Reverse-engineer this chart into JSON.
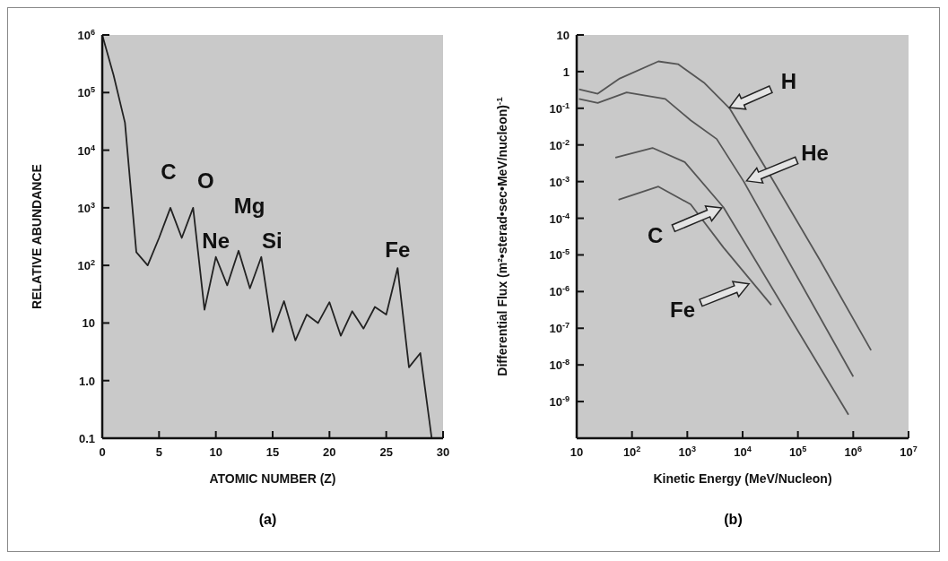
{
  "chart_data": [
    {
      "type": "line",
      "xlabel": "ATOMIC NUMBER (Z)",
      "ylabel": "RELATIVE ABUNDANCE",
      "log": "y",
      "grid": false,
      "marker": "none",
      "line_style": "solid",
      "xlim": [
        0,
        30
      ],
      "xticks": [
        0,
        5,
        10,
        15,
        20,
        25,
        30
      ],
      "ylim": [
        0.1,
        1000000
      ],
      "yticks": [
        {
          "value": 0.1,
          "label": "0.1"
        },
        {
          "value": 1,
          "label": "1.0"
        },
        {
          "value": 10,
          "label": "10"
        },
        {
          "value": 100,
          "label": "10$^{2}$"
        },
        {
          "value": 1000,
          "label": "10$^{3}$"
        },
        {
          "value": 10000,
          "label": "10$^{4}$"
        },
        {
          "value": 100000,
          "label": "10$^{5}$"
        },
        {
          "value": 1000000,
          "label": "10$^{6}$"
        }
      ],
      "x": [
        0,
        1,
        2,
        3,
        4,
        5,
        6,
        7,
        8,
        9,
        10,
        11,
        12,
        13,
        14,
        15,
        16,
        17,
        18,
        19,
        20,
        21,
        22,
        23,
        24,
        25,
        26,
        27,
        28,
        29
      ],
      "series": [
        {
          "color": "#222222",
          "values": [
            1000000,
            200000,
            30000,
            170,
            100,
            300,
            1000,
            300,
            1000,
            17,
            140,
            45,
            180,
            40,
            140,
            7,
            24,
            5,
            14,
            10,
            23,
            6,
            16,
            8,
            19,
            14,
            90,
            1.7,
            3,
            0.1
          ]
        }
      ],
      "annotations": [
        "(a)",
        {
          "text": "C",
          "x": 6,
          "y": 1000
        },
        {
          "text": "O",
          "x": 8,
          "y": 1000
        },
        {
          "text": "Ne",
          "x": 10,
          "y": 140
        },
        {
          "text": "Mg",
          "x": 12,
          "y": 180
        },
        {
          "text": "Si",
          "x": 14,
          "y": 140
        },
        {
          "text": "Fe",
          "x": 26,
          "y": 90
        }
      ]
    },
    {
      "type": "line",
      "xlabel": "Kinetic Energy (MeV/Nucleon)",
      "ylabel": "Differential Flux (m²•sterad•sec•MeV/nucleon)$^{-1}$",
      "log": "xy",
      "grid": false,
      "marker": "none",
      "line_style": "solid",
      "xlim": [
        10,
        10000000
      ],
      "xticks": [
        {
          "value": 10,
          "label": "10"
        },
        {
          "value": 100,
          "label": "10$^{2}$"
        },
        {
          "value": 1000,
          "label": "10$^{3}$"
        },
        {
          "value": 10000,
          "label": "10$^{4}$"
        },
        {
          "value": 100000,
          "label": "10$^{5}$"
        },
        {
          "value": 1000000,
          "label": "10$^{6}$"
        },
        {
          "value": 10000000,
          "label": "10$^{7}$"
        }
      ],
      "ylim": [
        1e-10,
        10
      ],
      "yticks": [
        {
          "value": 10,
          "label": "10"
        },
        {
          "value": 1,
          "label": "1"
        },
        {
          "value": 0.1,
          "label": "10$^{-1}$"
        },
        {
          "value": 0.01,
          "label": "10$^{-2}$"
        },
        {
          "value": 0.001,
          "label": "10$^{-3}$"
        },
        {
          "value": 0.0001,
          "label": "10$^{-4}$"
        },
        {
          "value": 1e-05,
          "label": "10$^{-5}$"
        },
        {
          "value": 1e-06,
          "label": "10$^{-6}$"
        },
        {
          "value": 1e-07,
          "label": "10$^{-7}$"
        },
        {
          "value": 1e-08,
          "label": "10$^{-8}$"
        },
        {
          "value": 1e-09,
          "label": "10$^{-9}$"
        }
      ],
      "series": [
        {
          "color": "#555555",
          "x": [
            11,
            24,
            60,
            300,
            680,
            2000,
            5800,
            33000,
            250000,
            2100000
          ],
          "values": [
            0.33,
            0.25,
            0.65,
            1.9,
            1.6,
            0.5,
            0.1,
            0.0013,
            7.2e-06,
            2.5e-08
          ]
        },
        {
          "color": "#555555",
          "x": [
            11,
            24,
            80,
            400,
            1150,
            3400,
            10500,
            1000000
          ],
          "values": [
            0.18,
            0.14,
            0.27,
            0.18,
            0.047,
            0.0145,
            0.001,
            4.8e-09
          ]
        },
        {
          "color": "#555555",
          "x": [
            50,
            235,
            900,
            4500,
            820000
          ],
          "values": [
            0.0045,
            0.0083,
            0.0034,
            0.0002,
            4.4e-10
          ]
        },
        {
          "color": "#555555",
          "x": [
            57,
            300,
            1150,
            4500,
            33000
          ],
          "values": [
            0.00032,
            0.00073,
            0.00024,
            1.6e-05,
            4.3e-07
          ]
        }
      ],
      "annotations": [
        "(b)",
        {
          "text": "H",
          "x": 5400,
          "y": 0.1
        },
        {
          "text": "He",
          "x": 11000,
          "y": 0.001
        },
        {
          "text": "C",
          "x": 4500,
          "y": 0.0002
        },
        {
          "text": "Fe",
          "x": 14000,
          "y": 1.7e-06
        }
      ]
    }
  ]
}
